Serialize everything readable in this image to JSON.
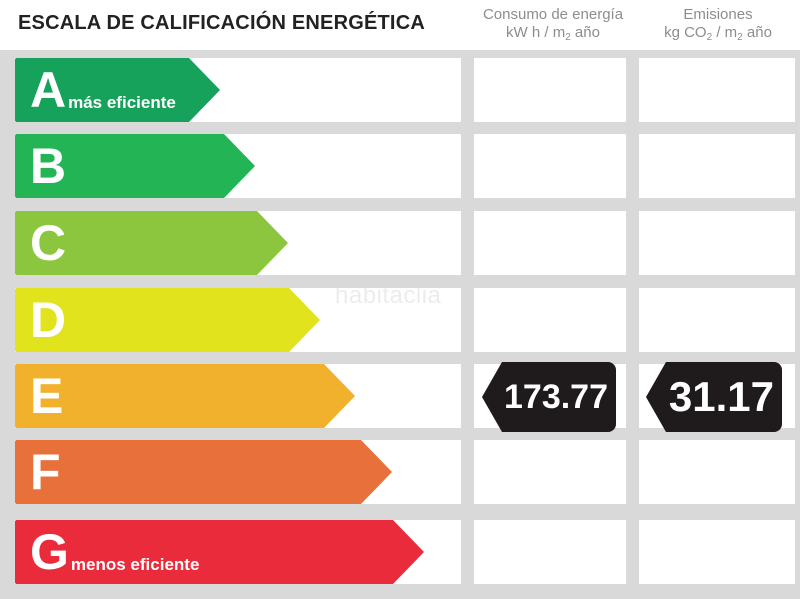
{
  "title": "ESCALA DE CALIFICACIÓN ENERGÉTICA",
  "columns": {
    "consumption": {
      "line1": "Consumo de energía",
      "line2_prefix": "kW h / m",
      "line2_sub": "2",
      "line2_suffix": " año"
    },
    "emissions": {
      "line1": "Emisiones",
      "line2_prefix": "kg CO",
      "line2_sub": "2",
      "line2_mid": " / m",
      "line2_sub2": "2",
      "line2_suffix": " año"
    }
  },
  "ratings": [
    {
      "letter": "A",
      "desc": "más eficiente",
      "color": "#16a25a"
    },
    {
      "letter": "B",
      "desc": "",
      "color": "#22b455"
    },
    {
      "letter": "C",
      "desc": "",
      "color": "#8cc63e"
    },
    {
      "letter": "D",
      "desc": "",
      "color": "#e1e31c"
    },
    {
      "letter": "E",
      "desc": "",
      "color": "#f2b12c"
    },
    {
      "letter": "F",
      "desc": "",
      "color": "#e8713b"
    },
    {
      "letter": "G",
      "desc": "menos eficiente",
      "color": "#e92b3b"
    }
  ],
  "current_rating": "E",
  "consumption_value": "173.77",
  "emissions_value": "31.17",
  "watermark": "habitaclia"
}
